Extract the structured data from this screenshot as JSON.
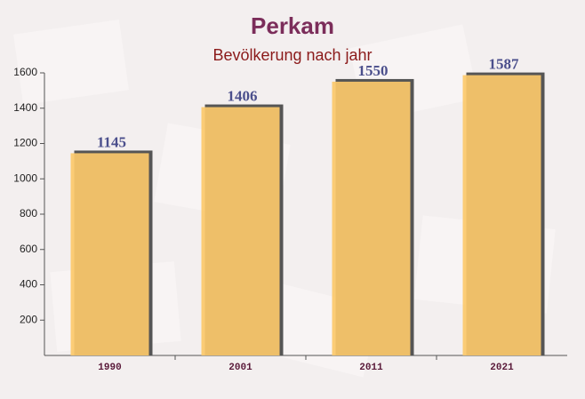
{
  "chart_data": {
    "type": "bar",
    "title": "Perkam",
    "subtitle": "Bevölkerung nach jahr",
    "categories": [
      "1990",
      "2001",
      "2011",
      "2021"
    ],
    "values": [
      1145,
      1406,
      1550,
      1587
    ],
    "color": "#fcc96b",
    "ylim": [
      0,
      1600
    ],
    "yticks": [
      200,
      400,
      600,
      800,
      1000,
      1200,
      1400,
      1600
    ]
  }
}
